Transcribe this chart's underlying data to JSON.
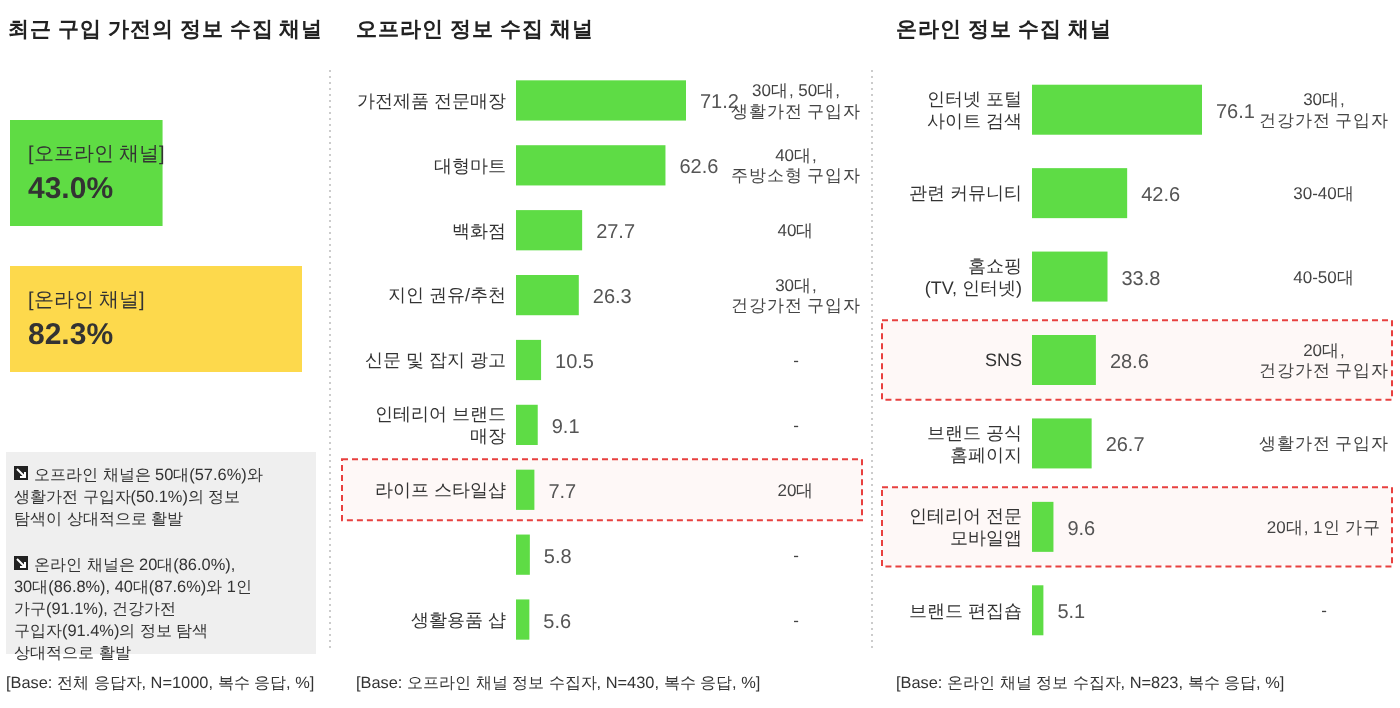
{
  "chart_data": [
    {
      "type": "bar",
      "orientation": "horizontal",
      "title": "최근 구입 가전의 정보 수집 채널",
      "categories": [
        "[오프라인 채널]",
        "[온라인 채널]"
      ],
      "values": [
        43.0,
        82.3
      ],
      "value_labels": [
        "43.0%",
        "82.3%"
      ],
      "colors": [
        "#5fdc44",
        "#fdd94c"
      ],
      "annotations": [
        "오프라인 채널은 50대(57.6%)와 생활가전 구입자(50.1%)의 정보 탐색이 상대적으로 활발",
        "온라인 채널은 20대(86.0%), 30대(86.8%), 40대(87.6%)와 1인 가구(91.1%), 건강가전 구입자(91.4%)의 정보 탐색 상대적으로 활발",
        "[Base: 전체 응답자, N=1000, 복수 응답, %]"
      ]
    },
    {
      "type": "bar",
      "orientation": "horizontal",
      "title": "오프라인 정보 수집 채널",
      "color": "#5edc45",
      "data_labels": true,
      "categories": [
        "가전제품 전문매장",
        "대형마트",
        "백화점",
        "지인 권유/추천",
        "신문 및 잡지 광고",
        "인테리어 브랜드 매장",
        "라이프 스타일샵",
        null,
        "생활용품 샵"
      ],
      "values": [
        71.2,
        62.6,
        27.7,
        26.3,
        10.5,
        9.1,
        7.7,
        5.8,
        5.6
      ],
      "bands": [
        {
          "axis": "y",
          "from": "라이프 스타일샵",
          "to": "라이프 스타일샵",
          "color": "#e8403f"
        }
      ],
      "annotations": [
        "30대, 50대, 생활가전 구입자",
        "40대, 주방소형 구입자",
        "40대",
        "30대, 건강가전 구입자",
        "-",
        "-",
        "20대",
        "-",
        "-",
        "[Base: 오프라인 채널 정보 수집자, N=430, 복수 응답, %]"
      ]
    },
    {
      "type": "bar",
      "orientation": "horizontal",
      "title": "온라인 정보 수집 채널",
      "color": "#5edc45",
      "data_labels": true,
      "categories": [
        "인터넷 포털 사이트 검색",
        "관련 커뮤니티",
        "홈쇼핑 (TV, 인터넷)",
        "SNS",
        "브랜드 공식 홈페이지",
        "인테리어 전문 모바일앱",
        "브랜드 편집숍"
      ],
      "values": [
        76.1,
        42.6,
        33.8,
        28.6,
        26.7,
        9.6,
        5.1
      ],
      "bands": [
        {
          "axis": "y",
          "from": "SNS",
          "to": "SNS",
          "color": "#e8403f"
        },
        {
          "axis": "y",
          "from": "인테리어 전문 모바일앱",
          "to": "인테리어 전문 모바일앱",
          "color": "#e8403f"
        }
      ],
      "annotations": [
        "30대, 건강가전 구입자",
        "30-40대",
        "40-50대",
        "20대, 건강가전 구입자",
        "생활가전 구입자",
        "20대, 1인 가구",
        "-",
        "[Base: 온라인 채널 정보 수집자, N=823, 복수 응답, %]"
      ]
    }
  ]
}
